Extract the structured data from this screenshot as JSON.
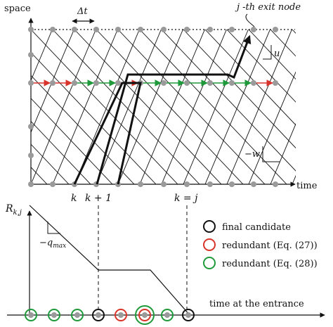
{
  "top_panel": {
    "y_axis_label": "space",
    "x_axis_label": "time",
    "delta_t_label": "Δt",
    "exit_node_label": "j -th exit node",
    "u_label": "u",
    "w_label": "−w",
    "tick_labels": {
      "k": "k",
      "k_plus_1": "k + 1",
      "k_eq_j": "k = j"
    }
  },
  "bottom_panel": {
    "y_axis_label": "R",
    "y_axis_subscript": "k,j",
    "slope_label": "−q",
    "slope_subscript": "max",
    "x_axis_label": "time at the entrance",
    "legend": [
      {
        "label": "final candidate",
        "color": "#111111"
      },
      {
        "label": "redundant (Eq. (27))",
        "color": "#d9342b"
      },
      {
        "label": "redundant (Eq. (28))",
        "color": "#1f9a3a"
      }
    ]
  },
  "colors": {
    "node": "#9a9a9a",
    "red_arrow": "#d9342b",
    "green_arrow": "#1f9a3a",
    "black": "#111111"
  }
}
